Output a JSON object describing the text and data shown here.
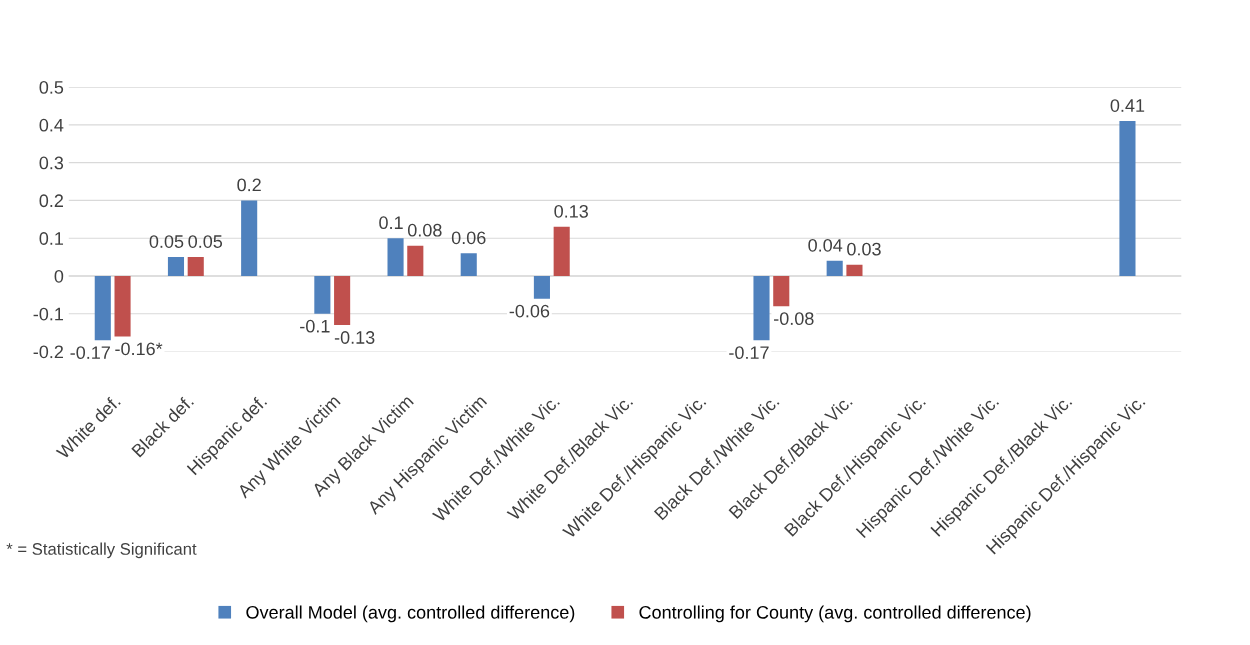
{
  "chart_data": {
    "type": "bar",
    "categories": [
      "White def.",
      "Black def.",
      "Hispanic def.",
      "Any White Victim",
      "Any Black Victim",
      "Any Hispanic Victim",
      "White Def./White Vic.",
      "White Def./Black Vic.",
      "White Def./Hispanic Vic.",
      "Black Def./White Vic.",
      "Black Def./Black Vic.",
      "Black Def./Hispanic Vic.",
      "Hispanic Def./White Vic.",
      "Hispanic Def./Black Vic.",
      "Hispanic Def./Hispanic Vic."
    ],
    "series": [
      {
        "name": "Overall Model (avg. controlled difference)",
        "color": "#4f81bd",
        "values": [
          -0.17,
          0.05,
          0.2,
          -0.1,
          0.1,
          0.06,
          -0.06,
          null,
          null,
          -0.17,
          0.04,
          null,
          null,
          null,
          0.41
        ],
        "value_labels": [
          "-0.17",
          "0.05",
          "0.2",
          "-0.1",
          "0.1",
          "0.06",
          "-0.06",
          null,
          null,
          "-0.17",
          "0.04",
          null,
          null,
          null,
          "0.41"
        ]
      },
      {
        "name": "Controlling for County (avg. controlled difference)",
        "color": "#c0504d",
        "values": [
          -0.16,
          0.05,
          null,
          -0.13,
          0.08,
          null,
          0.13,
          null,
          null,
          -0.08,
          0.03,
          null,
          null,
          null,
          null
        ],
        "value_labels": [
          "-0.16*",
          "0.05",
          null,
          "-0.13",
          "0.08",
          null,
          "0.13",
          null,
          null,
          "-0.08",
          "0.03",
          null,
          null,
          null,
          null
        ]
      }
    ],
    "ylim": [
      -0.2,
      0.5
    ],
    "yticks": [
      -0.2,
      -0.1,
      0,
      0.1,
      0.2,
      0.3,
      0.4,
      0.5
    ],
    "grid": "y",
    "legend": "bottom",
    "annotations": [
      "* = Statistically Significant"
    ]
  }
}
